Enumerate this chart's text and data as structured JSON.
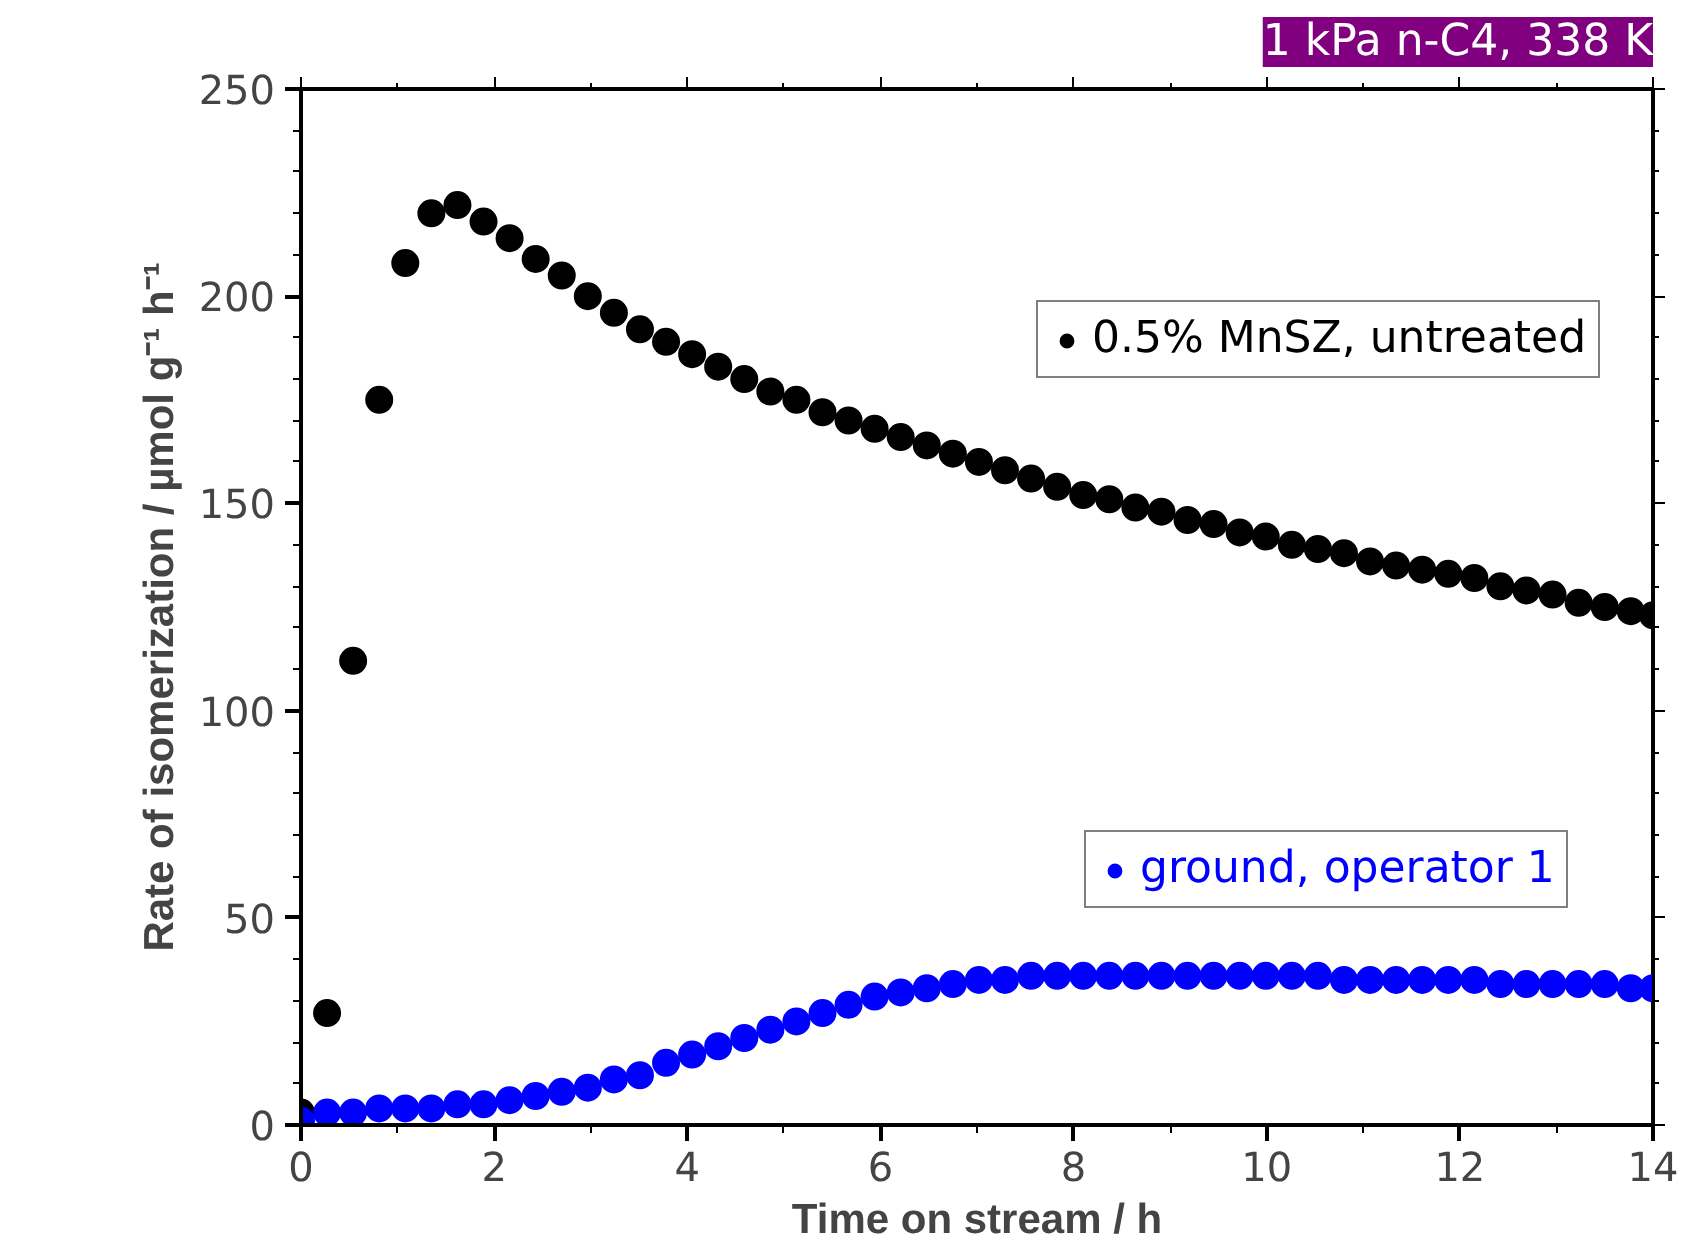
{
  "chart_data": {
    "type": "scatter",
    "title": "1 kPa n-C4, 338 K",
    "xlabel": "Time on stream / h",
    "ylabel": "Rate of isomerization / µmol g⁻¹ h⁻¹",
    "x": [
      0,
      0.27,
      0.54,
      0.81,
      1.08,
      1.35,
      1.62,
      1.89,
      2.16,
      2.43,
      2.7,
      2.97,
      3.24,
      3.51,
      3.78,
      4.05,
      4.32,
      4.59,
      4.86,
      5.13,
      5.4,
      5.67,
      5.94,
      6.21,
      6.48,
      6.75,
      7.02,
      7.29,
      7.56,
      7.83,
      8.1,
      8.37,
      8.64,
      8.91,
      9.18,
      9.45,
      9.72,
      9.99,
      10.26,
      10.53,
      10.8,
      11.07,
      11.34,
      11.61,
      11.88,
      12.15,
      12.42,
      12.69,
      12.96,
      13.23,
      13.5,
      13.77,
      14.0
    ],
    "series": [
      {
        "name": "0.5% MnSZ, untreated",
        "color": "#000000",
        "values": [
          3,
          27,
          112,
          175,
          208,
          220,
          222,
          218,
          214,
          209,
          205,
          200,
          196,
          192,
          189,
          186,
          183,
          180,
          177,
          175,
          172,
          170,
          168,
          166,
          164,
          162,
          160,
          158,
          156,
          154,
          152,
          151,
          149,
          148,
          146,
          145,
          143,
          142,
          140,
          139,
          138,
          136,
          135,
          134,
          133,
          132,
          130,
          129,
          128,
          126,
          125,
          124,
          123
        ]
      },
      {
        "name": "ground, operator 1",
        "color": "#0000ff",
        "values": [
          1,
          3,
          3,
          4,
          4,
          4,
          5,
          5,
          6,
          7,
          8,
          9,
          11,
          12,
          15,
          17,
          19,
          21,
          23,
          25,
          27,
          29,
          31,
          32,
          33,
          34,
          35,
          35,
          36,
          36,
          36,
          36,
          36,
          36,
          36,
          36,
          36,
          36,
          36,
          36,
          35,
          35,
          35,
          35,
          35,
          35,
          34,
          34,
          34,
          34,
          34,
          33,
          33
        ]
      }
    ],
    "xlim": [
      0,
      14
    ],
    "ylim": [
      0,
      250
    ],
    "xticks": [
      0,
      2,
      4,
      6,
      8,
      10,
      12,
      14
    ],
    "yticks": [
      0,
      50,
      100,
      150,
      200,
      250
    ],
    "marker": "circle",
    "grid": false,
    "legend": "right"
  }
}
